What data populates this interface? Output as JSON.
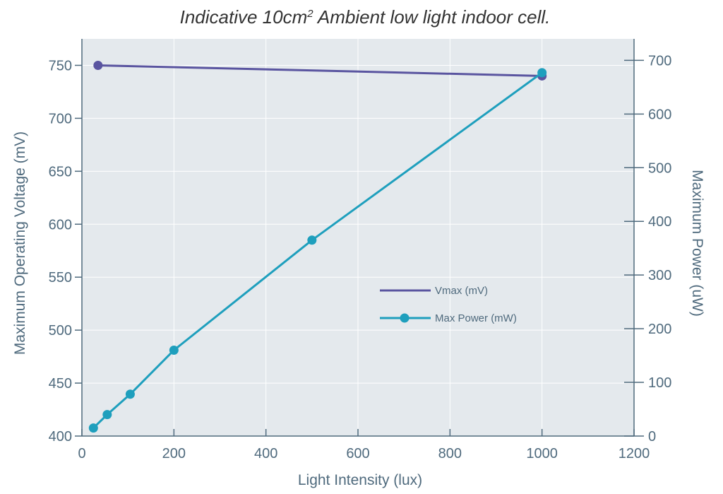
{
  "chart_data": {
    "type": "line",
    "title": {
      "prefix": "Indicative 10cm",
      "superscript": "2",
      "suffix": " Ambient low light indoor cell."
    },
    "xlabel": "Light Intensity (lux)",
    "ylabel_left": "Maximum Operating Voltage (mV)",
    "ylabel_right": "Maximum Power (uW)",
    "xlim": [
      0,
      1200
    ],
    "ylim_left": [
      400,
      775
    ],
    "ylim_right": [
      0,
      740
    ],
    "x_ticks": [
      "0",
      "200",
      "400",
      "600",
      "800",
      "1000",
      "1200"
    ],
    "y_left_ticks": [
      "400",
      "450",
      "500",
      "550",
      "600",
      "650",
      "700",
      "750"
    ],
    "y_right_ticks": [
      "0",
      "100",
      "200",
      "300",
      "400",
      "500",
      "600",
      "700"
    ],
    "grid": true,
    "legend_position": "center-right",
    "series": [
      {
        "name": "Vmax (mV)",
        "axis": "left",
        "color": "#5a55a0",
        "x": [
          35,
          1000
        ],
        "y": [
          750,
          740
        ]
      },
      {
        "name": "Max Power (mW)",
        "axis": "right",
        "color": "#1e9fbd",
        "x": [
          25,
          55,
          105,
          200,
          500,
          1000
        ],
        "y": [
          15,
          40,
          78,
          160,
          365,
          677
        ]
      }
    ]
  }
}
